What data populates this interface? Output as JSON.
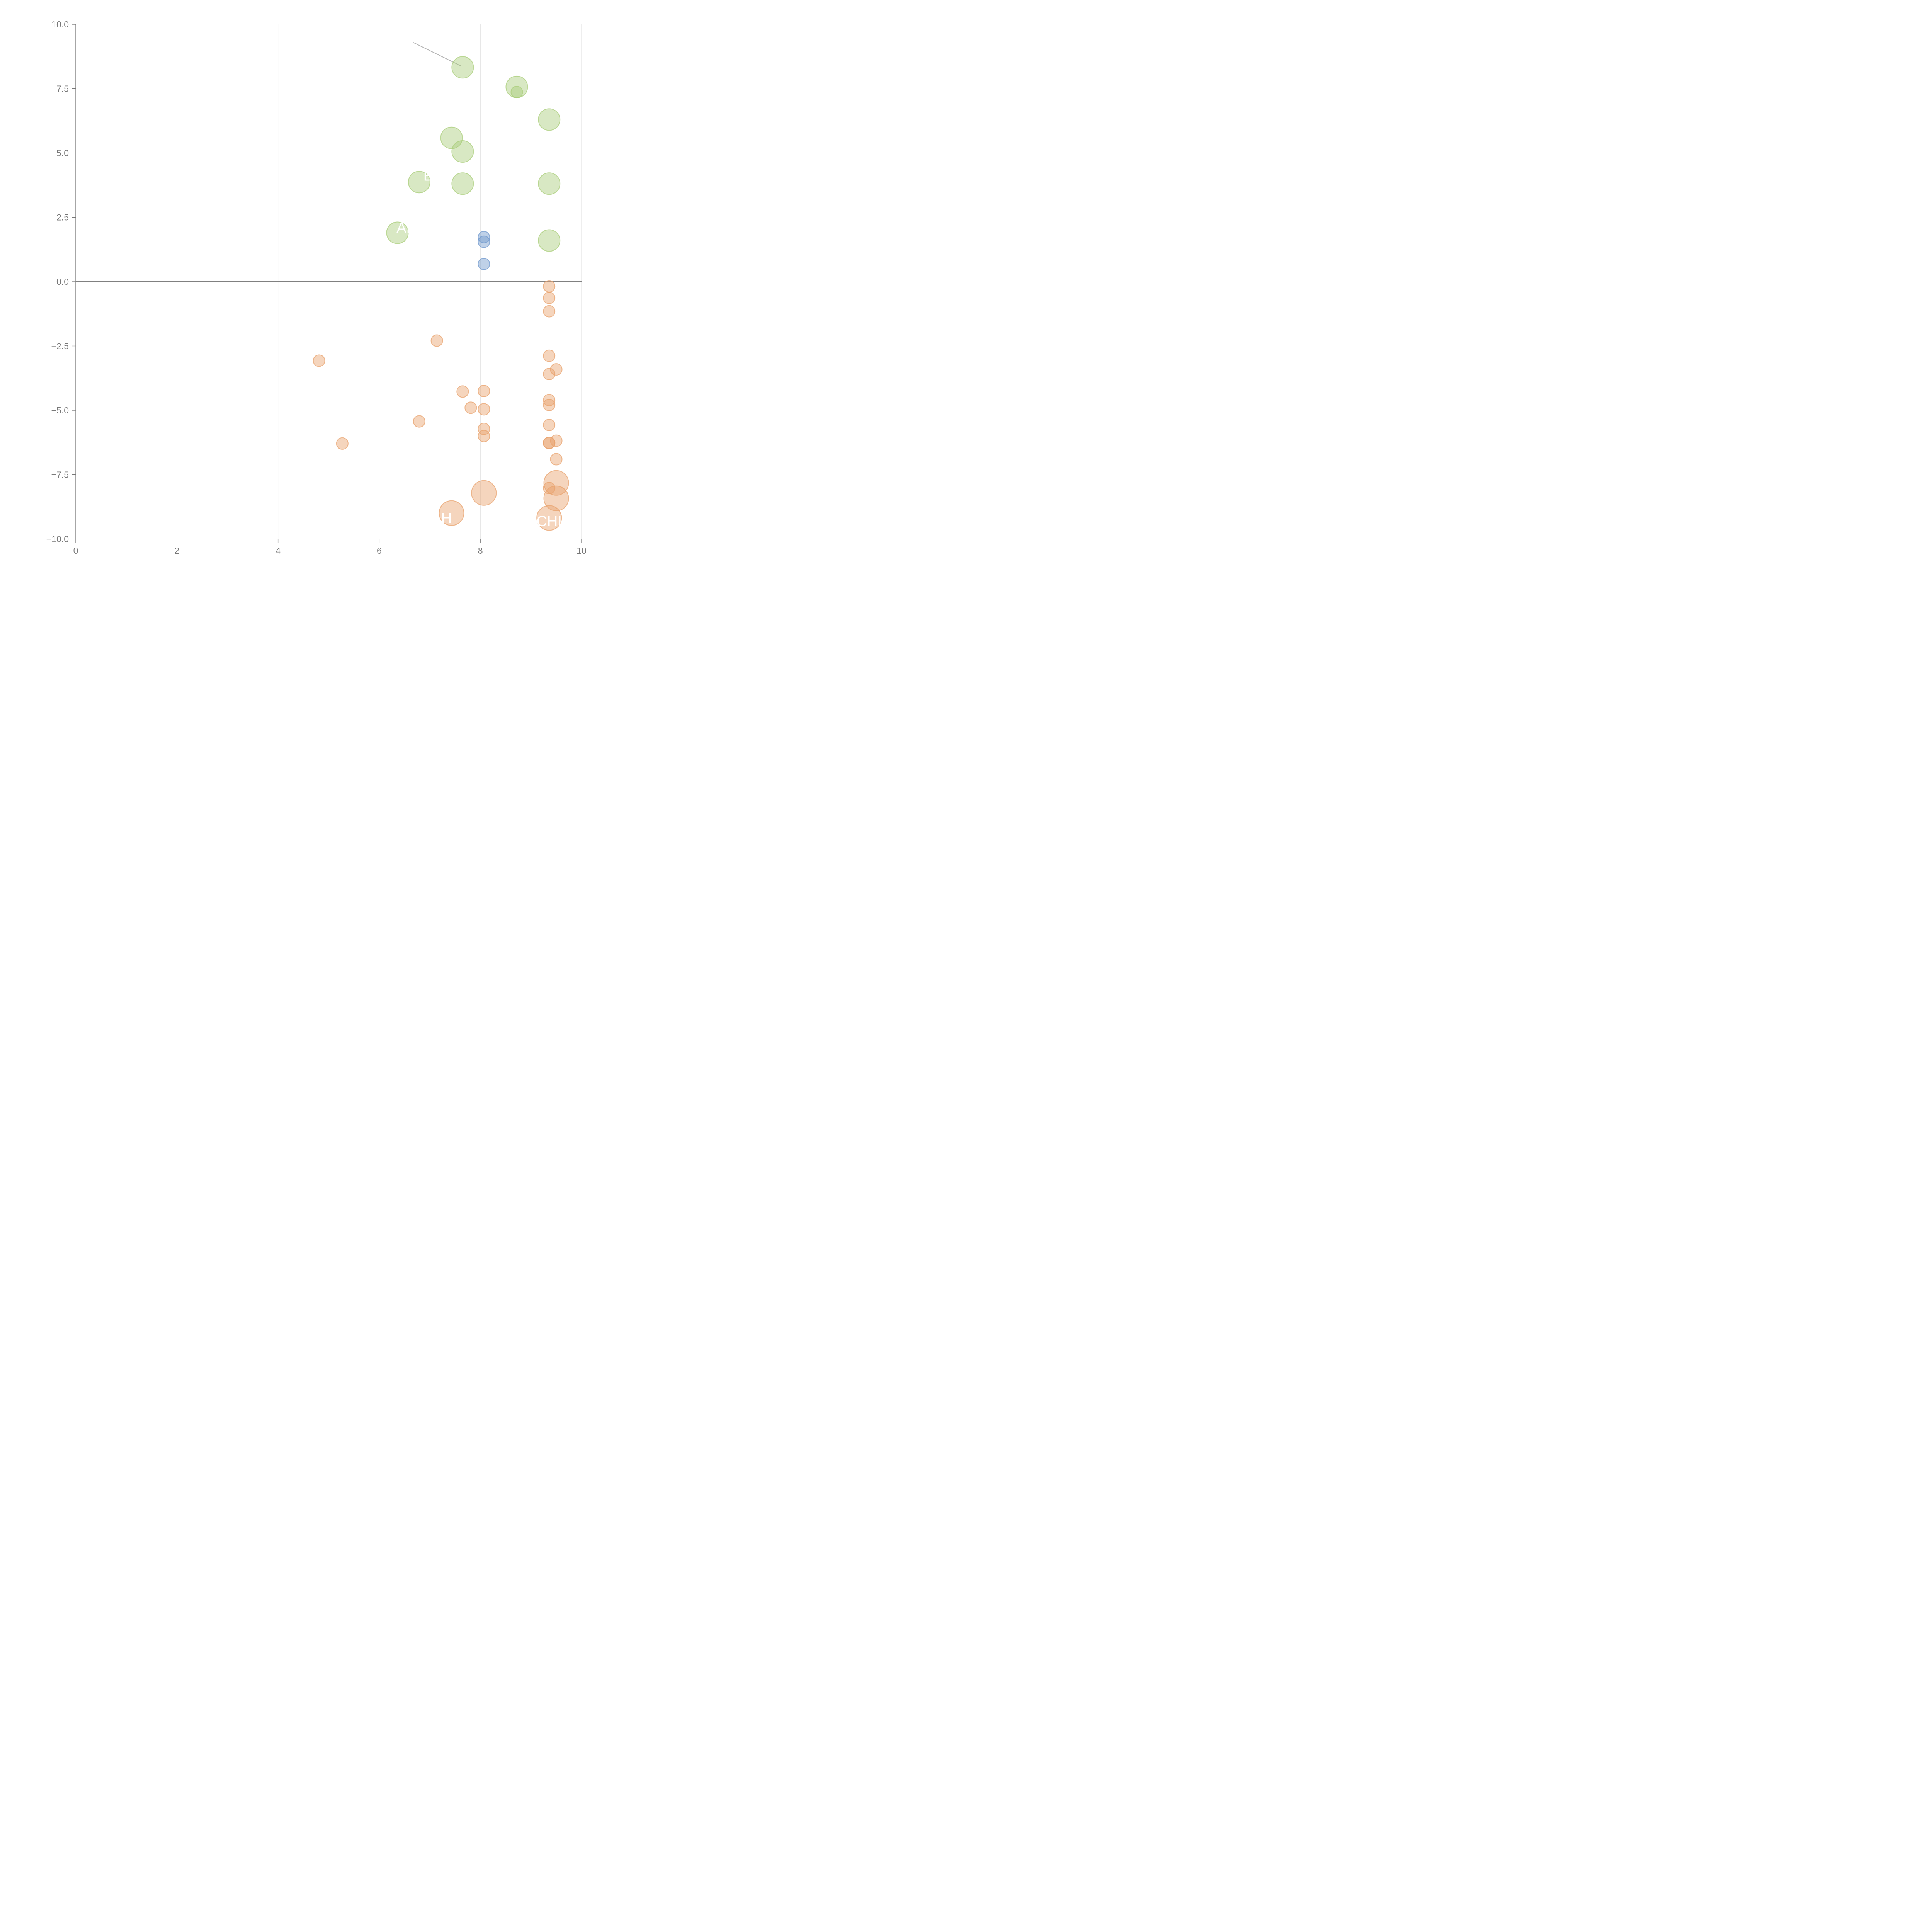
{
  "chart_data": {
    "type": "scatter",
    "title": "",
    "xlabel": "",
    "ylabel": "",
    "xlim": [
      0,
      10
    ],
    "ylim": [
      -10,
      10
    ],
    "grid": {
      "vertical": true,
      "horizontal": false
    },
    "zero_line": true,
    "x_ticks": [
      0,
      2,
      4,
      6,
      8,
      10
    ],
    "x_tick_labels": [
      "0",
      "2",
      "4",
      "6",
      "8",
      "10"
    ],
    "y_ticks": [
      10,
      7.5,
      5,
      2.5,
      0,
      -2.5,
      -5,
      -7.5,
      -10
    ],
    "y_tick_labels": [
      "10.0",
      "7.5",
      "5.0",
      "2.5",
      "0.0",
      "−2.5",
      "−5.0",
      "−7.5",
      "−10.0"
    ],
    "colors": {
      "green": "#a9cd7a",
      "blue": "#7098cd",
      "orange": "#e8a26c"
    },
    "series": [
      {
        "name": "green",
        "color": "#a9cd7a",
        "points": [
          {
            "x": 7.65,
            "y": 8.33,
            "s": 2
          },
          {
            "x": 8.72,
            "y": 7.57,
            "s": 2
          },
          {
            "x": 8.72,
            "y": 7.37,
            "s": 1
          },
          {
            "x": 9.36,
            "y": 6.3,
            "s": 2
          },
          {
            "x": 7.43,
            "y": 5.59,
            "s": 2
          },
          {
            "x": 7.65,
            "y": 5.06,
            "s": 2
          },
          {
            "x": 6.79,
            "y": 3.87,
            "s": 2
          },
          {
            "x": 7.65,
            "y": 3.81,
            "s": 2
          },
          {
            "x": 9.36,
            "y": 3.81,
            "s": 2
          },
          {
            "x": 6.36,
            "y": 1.9,
            "s": 2
          },
          {
            "x": 9.36,
            "y": 1.6,
            "s": 2
          }
        ]
      },
      {
        "name": "blue",
        "color": "#7098cd",
        "points": [
          {
            "x": 8.07,
            "y": 1.73,
            "s": 1
          },
          {
            "x": 8.07,
            "y": 1.55,
            "s": 1
          },
          {
            "x": 8.07,
            "y": 0.69,
            "s": 1
          }
        ]
      },
      {
        "name": "orange",
        "color": "#e8a26c",
        "points": [
          {
            "x": 9.36,
            "y": -0.18,
            "s": 1
          },
          {
            "x": 9.36,
            "y": -0.63,
            "s": 1
          },
          {
            "x": 9.36,
            "y": -1.15,
            "s": 1
          },
          {
            "x": 7.14,
            "y": -2.29,
            "s": 1
          },
          {
            "x": 9.36,
            "y": -2.88,
            "s": 1
          },
          {
            "x": 4.81,
            "y": -3.07,
            "s": 1
          },
          {
            "x": 9.5,
            "y": -3.41,
            "s": 1
          },
          {
            "x": 9.36,
            "y": -3.59,
            "s": 1
          },
          {
            "x": 7.65,
            "y": -4.27,
            "s": 1
          },
          {
            "x": 8.07,
            "y": -4.25,
            "s": 1
          },
          {
            "x": 9.36,
            "y": -4.6,
            "s": 1
          },
          {
            "x": 9.36,
            "y": -4.79,
            "s": 1
          },
          {
            "x": 7.81,
            "y": -4.9,
            "s": 1
          },
          {
            "x": 8.07,
            "y": -4.96,
            "s": 1
          },
          {
            "x": 6.79,
            "y": -5.43,
            "s": 1
          },
          {
            "x": 9.36,
            "y": -5.57,
            "s": 1
          },
          {
            "x": 8.07,
            "y": -5.72,
            "s": 1
          },
          {
            "x": 8.07,
            "y": -6.0,
            "s": 1
          },
          {
            "x": 9.5,
            "y": -6.18,
            "s": 1
          },
          {
            "x": 9.36,
            "y": -6.26,
            "s": 1
          },
          {
            "x": 9.36,
            "y": -6.27,
            "s": 1
          },
          {
            "x": 5.27,
            "y": -6.29,
            "s": 1
          },
          {
            "x": 9.5,
            "y": -6.9,
            "s": 1
          },
          {
            "x": 9.5,
            "y": -7.82,
            "s": 3
          },
          {
            "x": 9.36,
            "y": -8.02,
            "s": 1
          },
          {
            "x": 8.07,
            "y": -8.21,
            "s": 3
          },
          {
            "x": 9.5,
            "y": -8.42,
            "s": 3
          },
          {
            "x": 7.43,
            "y": -8.99,
            "s": 3
          },
          {
            "x": 9.36,
            "y": -9.18,
            "s": 3
          }
        ]
      }
    ],
    "leader_line": {
      "x1": 6.67,
      "y1": 9.3,
      "x2": 7.62,
      "y2": 8.38
    },
    "annotations": [
      {
        "text": "AL",
        "x": 6.52,
        "y": 2.1
      },
      {
        "text": "B",
        "x": 6.97,
        "y": 4.12
      },
      {
        "text": "H",
        "x": 7.33,
        "y": -9.18
      },
      {
        "text": "CHI",
        "x": 9.36,
        "y": -9.3
      }
    ]
  }
}
